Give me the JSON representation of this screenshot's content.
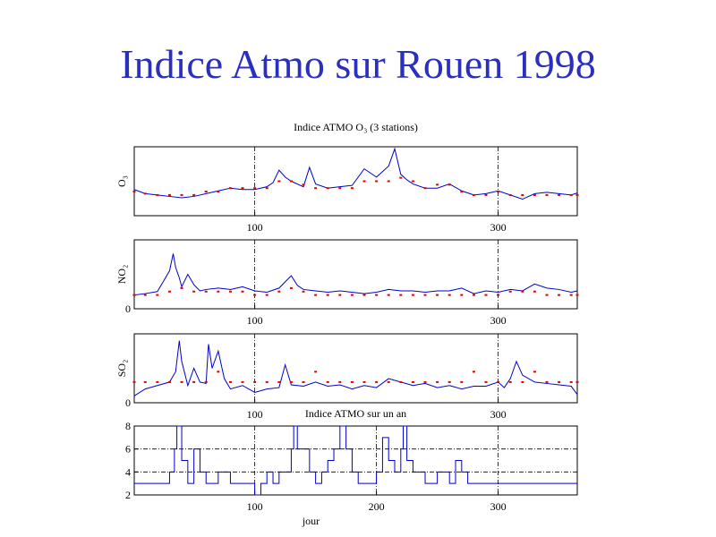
{
  "page": {
    "title": "Indice Atmo sur Rouen 1998"
  },
  "colors": {
    "title": "#2b2fc0",
    "series_line": "#0000cc",
    "series_points": "#e00000",
    "grid": "#000000"
  },
  "chart_data": [
    {
      "type": "line",
      "title": "Indice ATMO O₃ (3 stations)",
      "ylabel": "O₃",
      "xlim": [
        1,
        365
      ],
      "grid": "dash-dot vertical at x=100, 300",
      "x_ticks": [
        100,
        300
      ],
      "y_ticks": [],
      "ylim": [
        0,
        10
      ],
      "series": [
        {
          "style": "line",
          "color": "#0000cc",
          "x": [
            1,
            10,
            20,
            30,
            40,
            50,
            60,
            70,
            80,
            90,
            100,
            110,
            115,
            120,
            125,
            130,
            140,
            145,
            150,
            160,
            170,
            180,
            190,
            200,
            210,
            215,
            220,
            225,
            230,
            240,
            250,
            260,
            270,
            280,
            290,
            300,
            310,
            320,
            330,
            340,
            350,
            360,
            365
          ],
          "values": [
            3.8,
            3.2,
            3.0,
            2.8,
            2.6,
            2.8,
            3.2,
            3.6,
            4.0,
            3.8,
            3.8,
            4.2,
            4.8,
            6.6,
            5.6,
            5.0,
            4.2,
            7.0,
            4.6,
            4.0,
            4.2,
            4.4,
            6.8,
            5.6,
            7.2,
            9.7,
            6.0,
            5.2,
            4.6,
            4.0,
            4.0,
            4.6,
            3.6,
            3.0,
            3.2,
            3.6,
            3.0,
            2.4,
            3.2,
            3.4,
            3.2,
            3.0,
            3.3
          ]
        },
        {
          "style": "points",
          "color": "#e00000",
          "x": [
            1,
            10,
            20,
            30,
            40,
            50,
            60,
            70,
            80,
            90,
            100,
            110,
            120,
            130,
            140,
            150,
            160,
            170,
            180,
            190,
            200,
            210,
            220,
            230,
            240,
            250,
            260,
            270,
            280,
            290,
            300,
            310,
            320,
            330,
            340,
            350,
            360,
            365
          ],
          "values": [
            3.5,
            3.2,
            3.0,
            3.0,
            3.0,
            3.0,
            3.5,
            3.5,
            4.0,
            4.0,
            4.0,
            4.0,
            5.0,
            5.0,
            4.5,
            4.0,
            4.0,
            4.0,
            4.0,
            5.0,
            5.0,
            5.0,
            5.5,
            5.0,
            4.0,
            4.5,
            4.5,
            3.5,
            3.0,
            3.0,
            3.5,
            3.0,
            3.0,
            3.0,
            3.0,
            3.0,
            3.0,
            3.0
          ]
        }
      ]
    },
    {
      "type": "line",
      "title": "",
      "ylabel": "NO₂",
      "xlim": [
        1,
        365
      ],
      "x_ticks": [
        100,
        300
      ],
      "y_ticks": [
        0
      ],
      "ylim": [
        0,
        10
      ],
      "series": [
        {
          "style": "line",
          "color": "#0000cc",
          "x": [
            1,
            10,
            20,
            25,
            30,
            33,
            35,
            38,
            40,
            45,
            50,
            55,
            60,
            70,
            80,
            90,
            100,
            110,
            120,
            130,
            135,
            140,
            150,
            160,
            170,
            180,
            190,
            200,
            210,
            220,
            230,
            240,
            250,
            260,
            270,
            280,
            290,
            300,
            310,
            320,
            330,
            340,
            350,
            360,
            365
          ],
          "values": [
            2.0,
            2.2,
            2.5,
            4.0,
            5.5,
            8.0,
            6.0,
            4.5,
            3.2,
            5.0,
            3.5,
            2.6,
            2.8,
            3.0,
            2.8,
            3.2,
            2.6,
            2.4,
            3.0,
            4.8,
            3.4,
            2.8,
            2.6,
            2.4,
            2.6,
            2.4,
            2.2,
            2.4,
            2.8,
            2.6,
            2.6,
            2.4,
            2.6,
            2.6,
            3.0,
            2.2,
            2.6,
            2.4,
            2.8,
            2.6,
            3.6,
            3.0,
            2.8,
            2.4,
            2.6
          ]
        },
        {
          "style": "points",
          "color": "#e00000",
          "x": [
            1,
            10,
            20,
            30,
            40,
            50,
            60,
            70,
            80,
            90,
            100,
            110,
            120,
            130,
            140,
            150,
            160,
            170,
            180,
            190,
            200,
            210,
            220,
            230,
            240,
            250,
            260,
            270,
            280,
            290,
            300,
            310,
            320,
            330,
            340,
            350,
            360,
            365
          ],
          "values": [
            2.0,
            2.0,
            2.0,
            2.5,
            3.0,
            2.5,
            2.5,
            2.5,
            2.5,
            2.5,
            2.0,
            2.0,
            2.5,
            3.0,
            2.5,
            2.0,
            2.0,
            2.0,
            2.0,
            2.0,
            2.0,
            2.0,
            2.0,
            2.0,
            2.0,
            2.0,
            2.0,
            2.0,
            2.0,
            2.0,
            2.0,
            2.5,
            2.5,
            2.5,
            2.0,
            2.0,
            2.0,
            2.0
          ]
        }
      ]
    },
    {
      "type": "line",
      "title": "",
      "ylabel": "SO₂",
      "xlim": [
        1,
        365
      ],
      "x_ticks": [
        100,
        300
      ],
      "y_ticks": [
        0
      ],
      "ylim": [
        0,
        10
      ],
      "series": [
        {
          "style": "line",
          "color": "#0000cc",
          "x": [
            1,
            10,
            20,
            30,
            35,
            38,
            40,
            45,
            50,
            55,
            60,
            62,
            65,
            70,
            75,
            80,
            90,
            100,
            110,
            120,
            125,
            130,
            140,
            150,
            160,
            170,
            180,
            190,
            200,
            210,
            220,
            230,
            240,
            250,
            260,
            270,
            280,
            290,
            300,
            305,
            310,
            315,
            320,
            330,
            340,
            350,
            360,
            365
          ],
          "values": [
            1.0,
            2.0,
            2.5,
            3.0,
            4.5,
            9.0,
            6.0,
            2.5,
            5.0,
            3.0,
            2.8,
            8.5,
            5.0,
            7.5,
            3.5,
            2.0,
            2.5,
            1.5,
            2.0,
            2.2,
            5.5,
            2.6,
            2.4,
            3.0,
            2.4,
            2.6,
            2.0,
            2.5,
            2.2,
            3.5,
            3.0,
            2.5,
            2.8,
            2.2,
            2.5,
            2.0,
            2.4,
            2.4,
            3.0,
            2.2,
            3.5,
            6.0,
            4.0,
            3.0,
            2.8,
            2.6,
            2.4,
            1.2
          ]
        },
        {
          "style": "points",
          "color": "#e00000",
          "x": [
            1,
            10,
            20,
            30,
            40,
            50,
            60,
            70,
            80,
            90,
            100,
            110,
            120,
            130,
            140,
            150,
            160,
            170,
            180,
            190,
            200,
            210,
            220,
            230,
            240,
            250,
            260,
            270,
            280,
            290,
            300,
            310,
            320,
            330,
            340,
            350,
            360,
            365
          ],
          "values": [
            3.0,
            3.0,
            3.0,
            3.0,
            3.0,
            3.0,
            3.0,
            4.5,
            3.0,
            3.0,
            3.0,
            3.0,
            3.0,
            3.0,
            3.0,
            4.5,
            3.0,
            3.0,
            3.0,
            3.0,
            3.0,
            3.0,
            3.0,
            3.0,
            3.0,
            3.0,
            3.0,
            3.0,
            4.5,
            3.0,
            3.0,
            3.0,
            3.0,
            4.5,
            3.0,
            3.0,
            3.0,
            3.0
          ]
        }
      ]
    },
    {
      "type": "line",
      "title": "Indice ATMO sur un an",
      "xlabel": "jour",
      "xlim": [
        1,
        365
      ],
      "x_ticks": [
        100,
        200,
        300
      ],
      "y_ticks": [
        2,
        4,
        6,
        8
      ],
      "ylim": [
        2,
        8
      ],
      "grid": "dash-dot vertical at x=100, 200, 300; horizontal at y=4, 6",
      "series": [
        {
          "style": "step",
          "color": "#0000cc",
          "x": [
            1,
            10,
            20,
            30,
            34,
            36,
            40,
            45,
            50,
            55,
            60,
            65,
            70,
            80,
            90,
            100,
            105,
            110,
            115,
            120,
            125,
            130,
            132,
            135,
            140,
            145,
            150,
            155,
            160,
            165,
            170,
            175,
            180,
            185,
            190,
            200,
            205,
            210,
            215,
            220,
            222,
            225,
            230,
            240,
            250,
            260,
            265,
            270,
            275,
            280,
            290,
            300,
            310,
            320,
            330,
            340,
            350,
            360,
            365
          ],
          "values": [
            3,
            3,
            3,
            4,
            6,
            8,
            5,
            3,
            6,
            4,
            3,
            3,
            4,
            3,
            3,
            2,
            3,
            4,
            3,
            4,
            4,
            6,
            8,
            6,
            6,
            4,
            3,
            4,
            5,
            6,
            8,
            6,
            4,
            3,
            3,
            4,
            7,
            5,
            4,
            6,
            8,
            5,
            4,
            3,
            4,
            3,
            5,
            4,
            3,
            3,
            3,
            3,
            3,
            3,
            3,
            3,
            3,
            3,
            3
          ]
        }
      ]
    }
  ]
}
